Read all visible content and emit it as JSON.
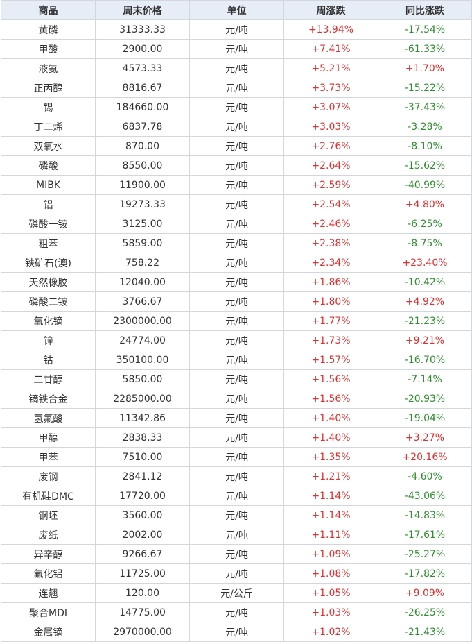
{
  "table": {
    "headers": [
      "商品",
      "周末价格",
      "单位",
      "周涨跌",
      "同比涨跌"
    ],
    "rows": [
      [
        "黄磷",
        "31333.33",
        "元/吨",
        "+13.94%",
        "-17.54%"
      ],
      [
        "甲酸",
        "2900.00",
        "元/吨",
        "+7.41%",
        "-61.33%"
      ],
      [
        "液氨",
        "4573.33",
        "元/吨",
        "+5.21%",
        "+1.70%"
      ],
      [
        "正丙醇",
        "8816.67",
        "元/吨",
        "+3.73%",
        "-15.22%"
      ],
      [
        "锡",
        "184660.00",
        "元/吨",
        "+3.07%",
        "-37.43%"
      ],
      [
        "丁二烯",
        "6837.78",
        "元/吨",
        "+3.03%",
        "-3.28%"
      ],
      [
        "双氧水",
        "870.00",
        "元/吨",
        "+2.76%",
        "-8.10%"
      ],
      [
        "磷酸",
        "8550.00",
        "元/吨",
        "+2.64%",
        "-15.62%"
      ],
      [
        "MIBK",
        "11900.00",
        "元/吨",
        "+2.59%",
        "-40.99%"
      ],
      [
        "铝",
        "19273.33",
        "元/吨",
        "+2.54%",
        "+4.80%"
      ],
      [
        "磷酸一铵",
        "3125.00",
        "元/吨",
        "+2.46%",
        "-6.25%"
      ],
      [
        "粗苯",
        "5859.00",
        "元/吨",
        "+2.38%",
        "-8.75%"
      ],
      [
        "铁矿石(澳)",
        "758.22",
        "元/吨",
        "+2.34%",
        "+23.40%"
      ],
      [
        "天然橡胶",
        "12040.00",
        "元/吨",
        "+1.86%",
        "-10.42%"
      ],
      [
        "磷酸二铵",
        "3766.67",
        "元/吨",
        "+1.80%",
        "+4.92%"
      ],
      [
        "氧化镝",
        "2300000.00",
        "元/吨",
        "+1.77%",
        "-21.23%"
      ],
      [
        "锌",
        "24774.00",
        "元/吨",
        "+1.73%",
        "+9.21%"
      ],
      [
        "钴",
        "350100.00",
        "元/吨",
        "+1.57%",
        "-16.70%"
      ],
      [
        "二甘醇",
        "5850.00",
        "元/吨",
        "+1.56%",
        "-7.14%"
      ],
      [
        "镝铁合金",
        "2285000.00",
        "元/吨",
        "+1.56%",
        "-20.93%"
      ],
      [
        "氢氟酸",
        "11342.86",
        "元/吨",
        "+1.40%",
        "-19.04%"
      ],
      [
        "甲醇",
        "2838.33",
        "元/吨",
        "+1.40%",
        "+3.27%"
      ],
      [
        "甲苯",
        "7510.00",
        "元/吨",
        "+1.35%",
        "+20.16%"
      ],
      [
        "废钢",
        "2841.12",
        "元/吨",
        "+1.21%",
        "-4.60%"
      ],
      [
        "有机硅DMC",
        "17720.00",
        "元/吨",
        "+1.14%",
        "-43.06%"
      ],
      [
        "钢坯",
        "3560.00",
        "元/吨",
        "+1.14%",
        "-14.83%"
      ],
      [
        "废纸",
        "2002.00",
        "元/吨",
        "+1.11%",
        "-17.61%"
      ],
      [
        "异辛醇",
        "9266.67",
        "元/吨",
        "+1.09%",
        "-25.27%"
      ],
      [
        "氟化铝",
        "11725.00",
        "元/吨",
        "+1.08%",
        "-17.82%"
      ],
      [
        "连翘",
        "120.00",
        "元/公斤",
        "+1.05%",
        "+9.09%"
      ],
      [
        "聚合MDI",
        "14775.00",
        "元/吨",
        "+1.03%",
        "-26.25%"
      ],
      [
        "金属镝",
        "2970000.00",
        "元/吨",
        "+1.02%",
        "-21.43%"
      ]
    ]
  },
  "colors": {
    "header_bg": "#e6edf6",
    "border": "#d3d6dc",
    "text": "#333333",
    "positive": "#e03030",
    "negative": "#2f8f2f"
  }
}
